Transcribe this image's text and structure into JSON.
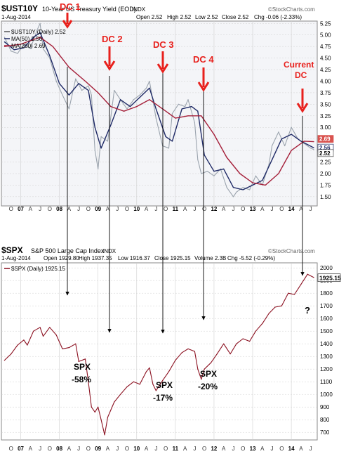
{
  "colors": {
    "price_gray": "#9aa3ad",
    "ma50_blue": "#1f2a66",
    "ma200_red": "#a5203a",
    "spx_line": "#8b1020",
    "arrow_red": "#e8201c",
    "panel_bg_top": "#eef0f4",
    "grid": "#d0d0d0",
    "tag_red_bg": "#d9534f"
  },
  "watermark": "©StockCharts.com",
  "month_letters": [
    "A",
    "J",
    "O",
    "",
    "A",
    "J",
    "O",
    "",
    "A",
    "J",
    "O",
    "",
    "A",
    "J",
    "O",
    "",
    "A",
    "J",
    "O",
    "",
    "A",
    "J",
    "O",
    "",
    "A",
    "J",
    "O",
    "",
    "A",
    "J",
    "O",
    "",
    "A",
    "J"
  ],
  "chart_data": [
    {
      "type": "line",
      "symbol": "$UST10Y",
      "title": "10-Year US Treasury Yield (EOD)",
      "exchange": "INDX",
      "date": "1-Aug-2014",
      "stats": {
        "open": "Open 2.52",
        "high": "High 2.52",
        "low": "Low 2.52",
        "close": "Close 2.52",
        "chg": "Chg -0.06 (-2.33%)"
      },
      "legend": [
        "$UST10Y (Daily) 2.52",
        "MA(50) 2.56",
        "MA(200) 2.69"
      ],
      "ylim": [
        1.3,
        5.3
      ],
      "yticks": [
        "5.25",
        "5.00",
        "4.75",
        "4.50",
        "4.25",
        "4.00",
        "3.75",
        "3.50",
        "3.25",
        "3.00",
        "2.75",
        "2.50",
        "2.25",
        "2.00",
        "1.75",
        "1.50"
      ],
      "xlabels": [
        "07",
        "08",
        "09",
        "10",
        "11",
        "12",
        "13",
        "14"
      ],
      "last_tags": [
        "2.69",
        "2.56",
        "2.52"
      ],
      "series": [
        {
          "name": "$UST10Y",
          "x": [
            2006.58,
            2006.75,
            2006.92,
            2007.08,
            2007.25,
            2007.42,
            2007.5,
            2007.58,
            2007.75,
            2007.92,
            2008.08,
            2008.25,
            2008.42,
            2008.58,
            2008.75,
            2008.83,
            2008.92,
            2009.0,
            2009.08,
            2009.25,
            2009.42,
            2009.58,
            2009.75,
            2009.92,
            2010.08,
            2010.25,
            2010.33,
            2010.5,
            2010.67,
            2010.83,
            2010.92,
            2011.08,
            2011.25,
            2011.33,
            2011.5,
            2011.58,
            2011.67,
            2011.83,
            2012.0,
            2012.17,
            2012.33,
            2012.5,
            2012.58,
            2012.75,
            2012.92,
            2013.08,
            2013.25,
            2013.42,
            2013.5,
            2013.67,
            2013.83,
            2014.0,
            2014.17,
            2014.33,
            2014.5,
            2014.58
          ],
          "values": [
            4.95,
            4.65,
            4.6,
            4.8,
            4.7,
            5.1,
            5.25,
            4.7,
            4.5,
            4.0,
            3.7,
            3.4,
            4.05,
            3.8,
            3.9,
            3.7,
            2.5,
            2.1,
            2.8,
            2.7,
            3.8,
            3.6,
            3.4,
            3.6,
            3.7,
            3.85,
            4.0,
            3.2,
            2.6,
            2.55,
            3.3,
            3.5,
            3.45,
            3.6,
            3.1,
            2.3,
            2.0,
            2.05,
            1.95,
            2.1,
            1.7,
            1.5,
            1.6,
            1.7,
            1.65,
            1.95,
            1.75,
            2.2,
            2.6,
            2.9,
            2.6,
            3.0,
            2.75,
            2.65,
            2.55,
            2.52
          ]
        },
        {
          "name": "MA(50)",
          "x": [
            2006.58,
            2006.83,
            2007.08,
            2007.33,
            2007.5,
            2007.75,
            2008.0,
            2008.25,
            2008.5,
            2008.75,
            2008.92,
            2009.08,
            2009.33,
            2009.58,
            2009.83,
            2010.08,
            2010.33,
            2010.5,
            2010.75,
            2010.92,
            2011.17,
            2011.42,
            2011.58,
            2011.75,
            2012.0,
            2012.25,
            2012.5,
            2012.75,
            2013.0,
            2013.25,
            2013.5,
            2013.75,
            2014.0,
            2014.25,
            2014.58
          ],
          "values": [
            4.85,
            4.68,
            4.72,
            4.95,
            5.05,
            4.55,
            3.95,
            3.7,
            3.95,
            3.8,
            3.0,
            2.55,
            3.05,
            3.6,
            3.45,
            3.65,
            3.85,
            3.4,
            2.8,
            2.7,
            3.4,
            3.45,
            3.35,
            2.4,
            2.05,
            2.1,
            1.7,
            1.65,
            1.75,
            1.85,
            2.3,
            2.75,
            2.85,
            2.7,
            2.56
          ]
        },
        {
          "name": "MA(200)",
          "x": [
            2006.58,
            2007.0,
            2007.5,
            2007.83,
            2008.25,
            2008.67,
            2009.0,
            2009.33,
            2009.67,
            2010.0,
            2010.33,
            2010.67,
            2011.0,
            2011.33,
            2011.67,
            2012.0,
            2012.33,
            2012.67,
            2013.0,
            2013.33,
            2013.67,
            2014.0,
            2014.33,
            2014.58
          ],
          "values": [
            4.75,
            4.8,
            4.95,
            4.75,
            4.3,
            4.0,
            3.75,
            3.45,
            3.35,
            3.45,
            3.6,
            3.4,
            3.2,
            3.25,
            3.25,
            2.85,
            2.35,
            2.0,
            1.8,
            1.75,
            2.0,
            2.5,
            2.7,
            2.69
          ]
        }
      ]
    },
    {
      "type": "line",
      "symbol": "$SPX",
      "title": "S&P 500 Large Cap Index",
      "exchange": "INDX",
      "date": "1-Aug-2014",
      "stats": {
        "open": "Open 1929.80",
        "high": "High 1937.35",
        "low": "Low 1916.37",
        "close": "Close 1925.15",
        "volume": "Volume 2.3B",
        "chg": "Chg -5.52 (-0.29%)"
      },
      "legend": [
        "$SPX (Daily) 1925.15"
      ],
      "ylim": [
        640,
        2040
      ],
      "yticks": [
        "2000",
        "1900",
        "1800",
        "1700",
        "1600",
        "1500",
        "1400",
        "1300",
        "1200",
        "1100",
        "1000",
        "900",
        "800",
        "700"
      ],
      "xlabels": [
        "07",
        "08",
        "09",
        "10",
        "11",
        "12",
        "13",
        "14"
      ],
      "last_tag": "1925.15",
      "series": [
        {
          "name": "$SPX",
          "x": [
            2006.58,
            2006.75,
            2006.92,
            2007.08,
            2007.17,
            2007.33,
            2007.5,
            2007.58,
            2007.75,
            2007.92,
            2008.08,
            2008.25,
            2008.42,
            2008.5,
            2008.67,
            2008.75,
            2008.83,
            2008.92,
            2009.0,
            2009.08,
            2009.17,
            2009.25,
            2009.42,
            2009.58,
            2009.75,
            2009.92,
            2010.08,
            2010.25,
            2010.33,
            2010.42,
            2010.5,
            2010.67,
            2010.83,
            2011.0,
            2011.17,
            2011.33,
            2011.5,
            2011.58,
            2011.67,
            2011.75,
            2011.92,
            2012.08,
            2012.25,
            2012.42,
            2012.58,
            2012.75,
            2012.92,
            2013.08,
            2013.25,
            2013.42,
            2013.58,
            2013.75,
            2013.92,
            2014.08,
            2014.25,
            2014.42,
            2014.58
          ],
          "values": [
            1270,
            1320,
            1390,
            1430,
            1390,
            1500,
            1530,
            1460,
            1530,
            1470,
            1360,
            1370,
            1400,
            1260,
            1280,
            1100,
            900,
            860,
            900,
            800,
            680,
            820,
            940,
            1000,
            1060,
            1100,
            1080,
            1180,
            1210,
            1080,
            1030,
            1110,
            1180,
            1270,
            1330,
            1360,
            1340,
            1200,
            1120,
            1200,
            1250,
            1320,
            1400,
            1320,
            1400,
            1440,
            1420,
            1500,
            1560,
            1640,
            1690,
            1700,
            1800,
            1790,
            1870,
            1950,
            1925
          ]
        }
      ]
    }
  ],
  "annotations": {
    "dc1": "DC 1",
    "dc2": "DC 2",
    "dc3": "DC 3",
    "dc4": "DC 4",
    "current1": "Current",
    "current2": "DC",
    "spx1_a": "SPX",
    "spx1_b": "-58%",
    "spx2_a": "SPX",
    "spx2_b": "-17%",
    "spx3_a": "SPX",
    "spx3_b": "-20%",
    "question": "?"
  }
}
